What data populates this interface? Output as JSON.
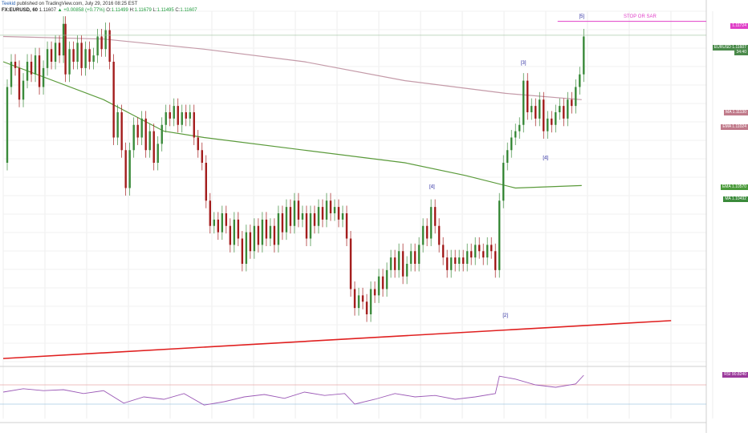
{
  "header": {
    "author": "Teekid",
    "published": "published on TradingView.com, July 29, 2016 08:25 EST",
    "symbol": "FX:EURUSD, 60",
    "last": "1.11607",
    "change": "▲ +0.00858 (+0.77%)",
    "ohlc": {
      "o_label": "O:",
      "o": "1.11499",
      "h_label": "H:",
      "h": "1.11679",
      "l_label": "L:",
      "l": "1.11495",
      "c_label": "C:",
      "c": "1.11607"
    }
  },
  "colors": {
    "up": "#3a8a3a",
    "down": "#a31c1c",
    "ma_long": "#c49aa8",
    "ma_short": "#5a9a3a",
    "stop": "#e040c8",
    "support": "#e02020",
    "rsi": "#9b59b6",
    "wave": "#2a2aa0"
  },
  "chart_data": [
    {
      "type": "line",
      "title": "",
      "series": [
        {
          "name": "EURUSD",
          "values": [
            [
              0,
              1.106
            ],
            [
              4,
              1.112
            ],
            [
              8,
              1.114
            ],
            [
              12,
              1.1135
            ],
            [
              16,
              1.111
            ],
            [
              20,
              1.1125
            ],
            [
              24,
              1.114
            ],
            [
              28,
              1.113
            ],
            [
              32,
              1.1145
            ],
            [
              36,
              1.112
            ],
            [
              40,
              1.1135
            ],
            [
              44,
              1.115
            ],
            [
              48,
              1.114
            ],
            [
              52,
              1.1155
            ],
            [
              56,
              1.1145
            ],
            [
              60,
              1.117
            ],
            [
              62,
              1.113
            ],
            [
              66,
              1.115
            ],
            [
              70,
              1.114
            ],
            [
              74,
              1.1155
            ],
            [
              78,
              1.1135
            ],
            [
              82,
              1.115
            ],
            [
              86,
              1.114
            ],
            [
              90,
              1.1145
            ],
            [
              94,
              1.116
            ],
            [
              98,
              1.115
            ],
            [
              102,
              1.1165
            ],
            [
              106,
              1.114
            ],
            [
              110,
              1.108
            ],
            [
              114,
              1.11
            ],
            [
              118,
              1.107
            ],
            [
              122,
              1.104
            ],
            [
              126,
              1.107
            ],
            [
              130,
              1.109
            ],
            [
              134,
              1.108
            ],
            [
              138,
              1.1095
            ],
            [
              142,
              1.107
            ],
            [
              146,
              1.1085
            ],
            [
              150,
              1.106
            ],
            [
              154,
              1.1075
            ],
            [
              158,
              1.109
            ],
            [
              162,
              1.11
            ],
            [
              166,
              1.1095
            ],
            [
              170,
              1.1105
            ],
            [
              174,
              1.109
            ],
            [
              178,
              1.11
            ],
            [
              182,
              1.1095
            ],
            [
              186,
              1.11
            ],
            [
              190,
              1.108
            ],
            [
              194,
              1.107
            ],
            [
              198,
              1.106
            ],
            [
              202,
              1.103
            ],
            [
              206,
              1.101
            ],
            [
              210,
              1.1015
            ],
            [
              214,
              1.1005
            ],
            [
              218,
              1.102
            ],
            [
              222,
              1.101
            ],
            [
              226,
              1.0995
            ],
            [
              230,
              1.1015
            ],
            [
              234,
              1.1
            ],
            [
              238,
              1.098
            ],
            [
              242,
              1.1005
            ],
            [
              246,
              1.099
            ],
            [
              250,
              1.101
            ],
            [
              254,
              1.0995
            ],
            [
              258,
              1.1015
            ],
            [
              262,
              1.1
            ],
            [
              266,
              1.101
            ],
            [
              270,
              1.0995
            ],
            [
              274,
              1.102
            ],
            [
              278,
              1.1005
            ],
            [
              282,
              1.1025
            ],
            [
              286,
              1.101
            ],
            [
              290,
              1.103
            ],
            [
              294,
              1.1015
            ],
            [
              298,
              1.102
            ],
            [
              302,
              1.1
            ],
            [
              306,
              1.102
            ],
            [
              310,
              1.101
            ],
            [
              314,
              1.1025
            ],
            [
              318,
              1.1015
            ],
            [
              322,
              1.103
            ],
            [
              326,
              1.102
            ],
            [
              330,
              1.1025
            ],
            [
              334,
              1.1015
            ],
            [
              338,
              1.102
            ],
            [
              342,
              1.1
            ],
            [
              346,
              1.096
            ],
            [
              350,
              1.0945
            ],
            [
              354,
              1.0955
            ],
            [
              358,
              1.095
            ],
            [
              362,
              1.094
            ],
            [
              366,
              1.096
            ],
            [
              370,
              1.0955
            ],
            [
              374,
              1.097
            ],
            [
              378,
              1.096
            ],
            [
              382,
              1.0975
            ],
            [
              386,
              1.0985
            ],
            [
              390,
              1.0975
            ],
            [
              394,
              1.099
            ],
            [
              398,
              1.097
            ],
            [
              402,
              1.098
            ],
            [
              406,
              1.099
            ],
            [
              410,
              1.098
            ],
            [
              414,
              1.0995
            ],
            [
              418,
              1.101
            ],
            [
              422,
              1.1
            ],
            [
              426,
              1.1025
            ],
            [
              430,
              1.101
            ],
            [
              434,
              1.0995
            ],
            [
              438,
              1.0985
            ],
            [
              442,
              1.0975
            ],
            [
              446,
              1.0985
            ],
            [
              450,
              1.098
            ],
            [
              454,
              1.0985
            ],
            [
              458,
              1.098
            ],
            [
              462,
              1.099
            ],
            [
              466,
              1.0985
            ],
            [
              470,
              1.0995
            ],
            [
              474,
              1.099
            ],
            [
              478,
              1.0985
            ],
            [
              482,
              1.0995
            ],
            [
              486,
              1.099
            ],
            [
              490,
              1.0975
            ],
            [
              494,
              1.103
            ],
            [
              498,
              1.106
            ],
            [
              502,
              1.107
            ],
            [
              506,
              1.108
            ],
            [
              510,
              1.1085
            ],
            [
              514,
              1.109
            ],
            [
              518,
              1.1125
            ],
            [
              522,
              1.11
            ],
            [
              526,
              1.1105
            ],
            [
              530,
              1.1095
            ],
            [
              534,
              1.111
            ],
            [
              538,
              1.1085
            ],
            [
              542,
              1.1095
            ],
            [
              546,
              1.109
            ],
            [
              550,
              1.11
            ],
            [
              554,
              1.1105
            ],
            [
              558,
              1.1095
            ],
            [
              562,
              1.111
            ],
            [
              566,
              1.1105
            ],
            [
              570,
              1.112
            ],
            [
              574,
              1.113
            ],
            [
              578,
              1.116
            ]
          ]
        },
        {
          "name": "EMA",
          "values": [
            [
              0,
              1.116
            ],
            [
              100,
              1.1158
            ],
            [
              200,
              1.115
            ],
            [
              300,
              1.114
            ],
            [
              400,
              1.1125
            ],
            [
              500,
              1.1115
            ],
            [
              576,
              1.111
            ]
          ]
        },
        {
          "name": "MA",
          "values": [
            [
              0,
              1.114
            ],
            [
              100,
              1.111
            ],
            [
              160,
              1.1085
            ],
            [
              200,
              1.108
            ],
            [
              300,
              1.107
            ],
            [
              400,
              1.106
            ],
            [
              460,
              1.105
            ],
            [
              510,
              1.104
            ],
            [
              576,
              1.1042
            ]
          ]
        }
      ],
      "price_labels": [
        "1.11724",
        "1.11607",
        "34:40",
        "1.11130",
        "1.11024",
        "1.10570",
        "1.10492"
      ],
      "price_tags": [
        {
          "label": "",
          "value": "1.11724",
          "color": "#e040c8"
        },
        {
          "label": "EURUSD",
          "value": "1.11607",
          "color": "#4a8a4a"
        },
        {
          "label": "",
          "value": "34:40",
          "color": "#4a8a4a"
        },
        {
          "label": "MA",
          "value": "1.11130",
          "color": "#c07a8a"
        },
        {
          "label": "EMA",
          "value": "1.11024",
          "color": "#c07a8a"
        },
        {
          "label": "EMA",
          "value": "1.10570",
          "color": "#4a9a3a"
        },
        {
          "label": "MA",
          "value": "1.10492",
          "color": "#3a8a3a"
        }
      ],
      "annotations": [
        {
          "text": "[5]",
          "x": 576,
          "y": 1.1175
        },
        {
          "text": "[3]",
          "x": 518,
          "y": 1.1138
        },
        {
          "text": "[4]",
          "x": 540,
          "y": 1.1063
        },
        {
          "text": "[4]",
          "x": 427,
          "y": 1.104
        },
        {
          "text": "[2]",
          "x": 500,
          "y": 1.0938
        },
        {
          "text": "STOP OR SAR",
          "x": 634,
          "y": 1.1175
        }
      ],
      "ylim": [
        1.09,
        1.118
      ],
      "grid": true
    },
    {
      "type": "line",
      "title": "",
      "series": [
        {
          "name": "RSI",
          "values": [
            [
              0,
              55
            ],
            [
              20,
              62
            ],
            [
              40,
              58
            ],
            [
              60,
              60
            ],
            [
              80,
              52
            ],
            [
              100,
              58
            ],
            [
              120,
              32
            ],
            [
              140,
              45
            ],
            [
              160,
              40
            ],
            [
              180,
              52
            ],
            [
              200,
              28
            ],
            [
              220,
              35
            ],
            [
              240,
              45
            ],
            [
              260,
              50
            ],
            [
              280,
              42
            ],
            [
              300,
              55
            ],
            [
              320,
              48
            ],
            [
              340,
              52
            ],
            [
              350,
              30
            ],
            [
              370,
              40
            ],
            [
              390,
              52
            ],
            [
              410,
              45
            ],
            [
              430,
              48
            ],
            [
              450,
              40
            ],
            [
              470,
              45
            ],
            [
              490,
              52
            ],
            [
              494,
              88
            ],
            [
              510,
              82
            ],
            [
              530,
              70
            ],
            [
              550,
              65
            ],
            [
              570,
              72
            ],
            [
              578,
              90
            ]
          ]
        }
      ],
      "labels": {
        "rsi_label": "RSI",
        "rsi_value": "90.8240"
      },
      "ylim": [
        0,
        100
      ],
      "levels": [
        70,
        30
      ]
    }
  ]
}
